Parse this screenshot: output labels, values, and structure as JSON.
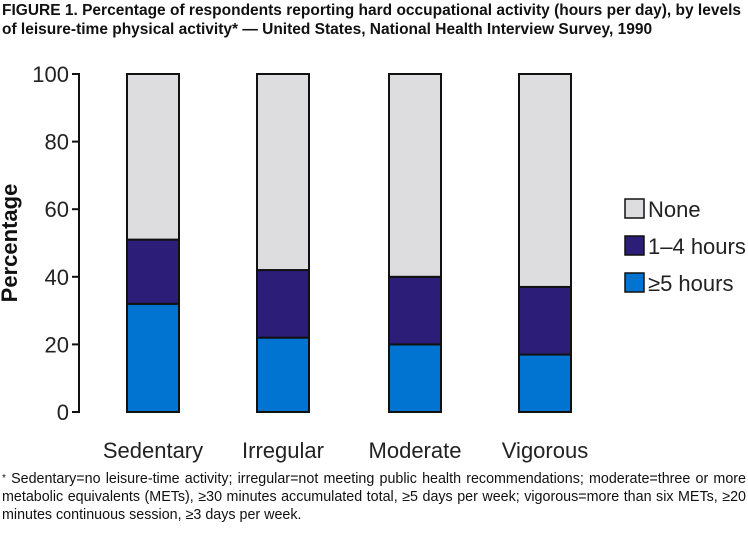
{
  "title": "FIGURE 1. Percentage of respondents reporting hard occupational activity (hours per day), by levels of leisure-time physical activity* — United States, National Health Interview Survey, 1990",
  "footnote_marker": "*",
  "footnote": "Sedentary=no leisure-time activity; irregular=not meeting public health recommendations; moderate=three or more metabolic equivalents (METs), ≥30 minutes accumulated total, ≥5 days per week; vigorous=more than six METs, ≥20 minutes continuous session, ≥3 days per week.",
  "chart_data": {
    "type": "bar",
    "stacked": true,
    "categories": [
      "Sedentary",
      "Irregular",
      "Moderate",
      "Vigorous"
    ],
    "series": [
      {
        "name": "≥5 hours",
        "values": [
          32,
          22,
          20,
          17
        ],
        "color": "#0074d0"
      },
      {
        "name": "1–4 hours",
        "values": [
          19,
          20,
          20,
          20
        ],
        "color": "#2b1d78"
      },
      {
        "name": "None",
        "values": [
          49,
          58,
          60,
          63
        ],
        "color": "#dddcdf"
      }
    ],
    "xlabel": "",
    "ylabel": "Percentage",
    "ylim": [
      0,
      100
    ],
    "yticks": [
      0,
      20,
      40,
      60,
      80,
      100
    ],
    "grid": false,
    "legend_position": "right",
    "legend_order": [
      "None",
      "1–4 hours",
      "≥5 hours"
    ]
  }
}
